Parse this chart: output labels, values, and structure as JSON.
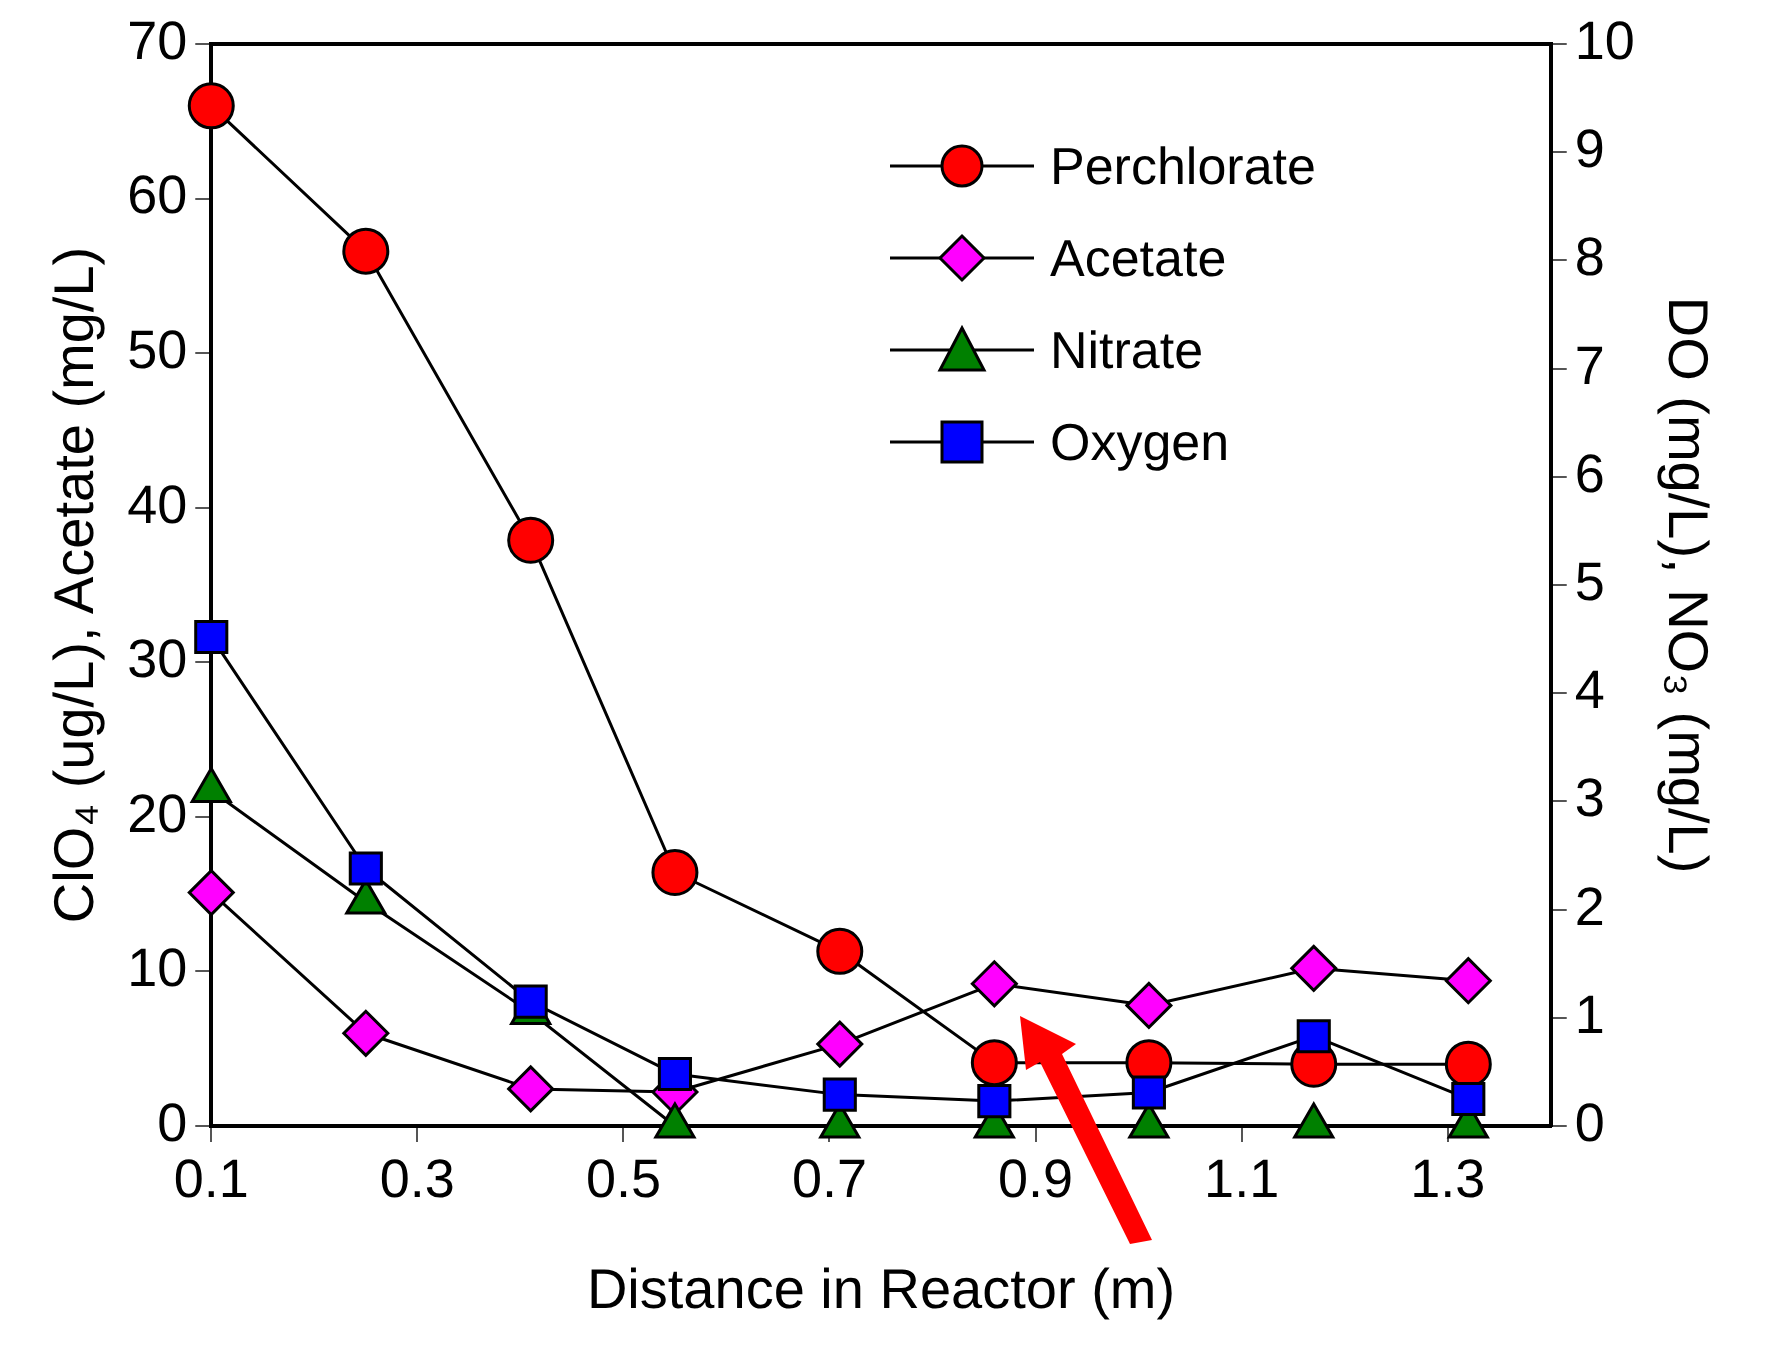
{
  "chart_data": {
    "type": "line",
    "xlabel": "Distance in Reactor (m)",
    "ylabel": "ClO₄ (ug/L), Acetate (mg/L)",
    "y2label": "DO (mg/L), NO₃ (mg/L)",
    "x": [
      0.1,
      0.25,
      0.41,
      0.55,
      0.71,
      0.86,
      1.01,
      1.17,
      1.32
    ],
    "xlim": [
      0.1,
      1.4
    ],
    "xticks": [
      0.1,
      0.3,
      0.5,
      0.7,
      0.9,
      1.1,
      1.3
    ],
    "ylim": [
      0,
      70
    ],
    "yticks": [
      0,
      10,
      20,
      30,
      40,
      50,
      60,
      70
    ],
    "y2lim": [
      0,
      10
    ],
    "y2ticks": [
      0,
      1,
      2,
      3,
      4,
      5,
      6,
      7,
      8,
      9,
      10
    ],
    "legend": "top right",
    "line_style": "solid",
    "series": [
      {
        "name": "Perchlorate",
        "color": "#ff0000",
        "marker": "circle",
        "values": [
          66,
          56.6,
          37.9,
          16.4,
          11.3,
          4.1,
          4.1,
          4,
          4
        ]
      },
      {
        "name": "Acetate",
        "color": "#ff00ff",
        "marker": "diamond",
        "values": [
          15.1,
          6,
          2.4,
          2.2,
          5.3,
          9.2,
          7.8,
          10.2,
          9.4
        ]
      },
      {
        "name": "Nitrate",
        "color": "#008000",
        "marker": "triangle",
        "axis": "y2",
        "values": [
          3.1,
          2.07,
          1.05,
          0,
          0,
          0,
          0,
          0,
          0
        ]
      },
      {
        "name": "Oxygen",
        "color": "#0000ff",
        "marker": "square",
        "axis": "y2",
        "values": [
          4.52,
          2.38,
          1.15,
          0.48,
          0.29,
          0.23,
          0.31,
          0.83,
          0.25
        ]
      }
    ]
  }
}
